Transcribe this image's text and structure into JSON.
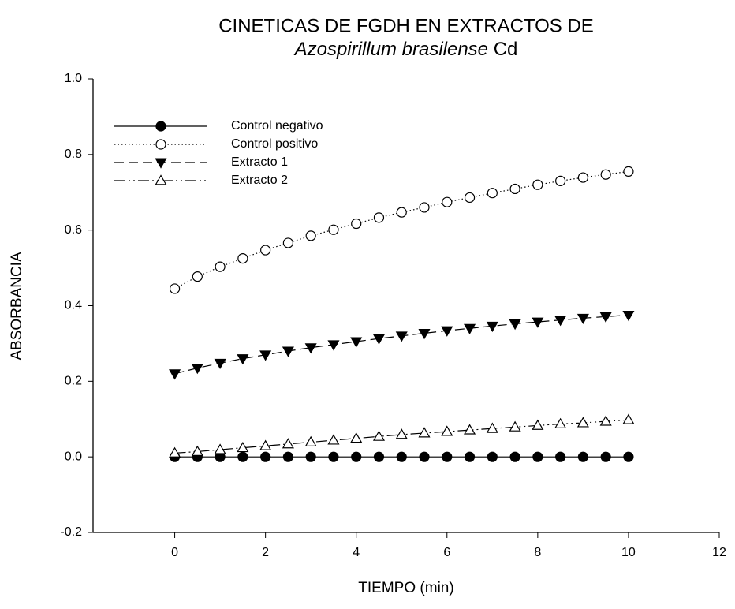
{
  "chart_data": {
    "type": "line",
    "title": "CINETICAS DE FGDH EN EXTRACTOS DE",
    "subtitle_parts": [
      "Azospirillum brasilense",
      "Cd"
    ],
    "xlabel": "TIEMPO (min)",
    "ylabel": "ABSORBANCIA",
    "x": [
      0,
      0.5,
      1,
      1.5,
      2,
      2.5,
      3,
      3.5,
      4,
      4.5,
      5,
      5.5,
      6,
      6.5,
      7,
      7.5,
      8,
      8.5,
      9,
      9.5,
      10
    ],
    "series": [
      {
        "name": "Control negativo",
        "color": "#000000",
        "marker": "circle-filled",
        "dash": "solid",
        "values": [
          0,
          0,
          0,
          0,
          0,
          0,
          0,
          0,
          0,
          0,
          0,
          0,
          0,
          0,
          0,
          0,
          0,
          0,
          0,
          0,
          0
        ]
      },
      {
        "name": "Control positivo",
        "color": "#000000",
        "marker": "circle-open",
        "dash": "dotted",
        "values": [
          0.445,
          0.477,
          0.503,
          0.525,
          0.547,
          0.566,
          0.585,
          0.601,
          0.617,
          0.633,
          0.647,
          0.66,
          0.674,
          0.686,
          0.698,
          0.709,
          0.72,
          0.73,
          0.739,
          0.747,
          0.755
        ]
      },
      {
        "name": "Extracto 1",
        "color": "#000000",
        "marker": "triangle-down-filled",
        "dash": "dashed",
        "values": [
          0.22,
          0.235,
          0.248,
          0.26,
          0.27,
          0.28,
          0.289,
          0.297,
          0.305,
          0.313,
          0.32,
          0.327,
          0.334,
          0.34,
          0.346,
          0.352,
          0.357,
          0.362,
          0.367,
          0.371,
          0.375
        ]
      },
      {
        "name": "Extracto 2",
        "color": "#000000",
        "marker": "triangle-up-open",
        "dash": "dash-dot-dot",
        "values": [
          0.01,
          0.014,
          0.019,
          0.024,
          0.029,
          0.034,
          0.039,
          0.044,
          0.049,
          0.054,
          0.059,
          0.063,
          0.067,
          0.071,
          0.075,
          0.079,
          0.083,
          0.087,
          0.09,
          0.094,
          0.098
        ]
      }
    ],
    "xlim": [
      -1.8,
      12
    ],
    "xticks": [
      0,
      2,
      4,
      6,
      8,
      10,
      12
    ],
    "ylim": [
      -0.2,
      1.0
    ],
    "yticks": [
      -0.2,
      {
        "value": 0,
        "label": "0.0"
      },
      0.2,
      0.4,
      0.6,
      0.8,
      {
        "value": 1,
        "label": "1.0"
      }
    ],
    "grid": false,
    "legend": "upper left"
  }
}
